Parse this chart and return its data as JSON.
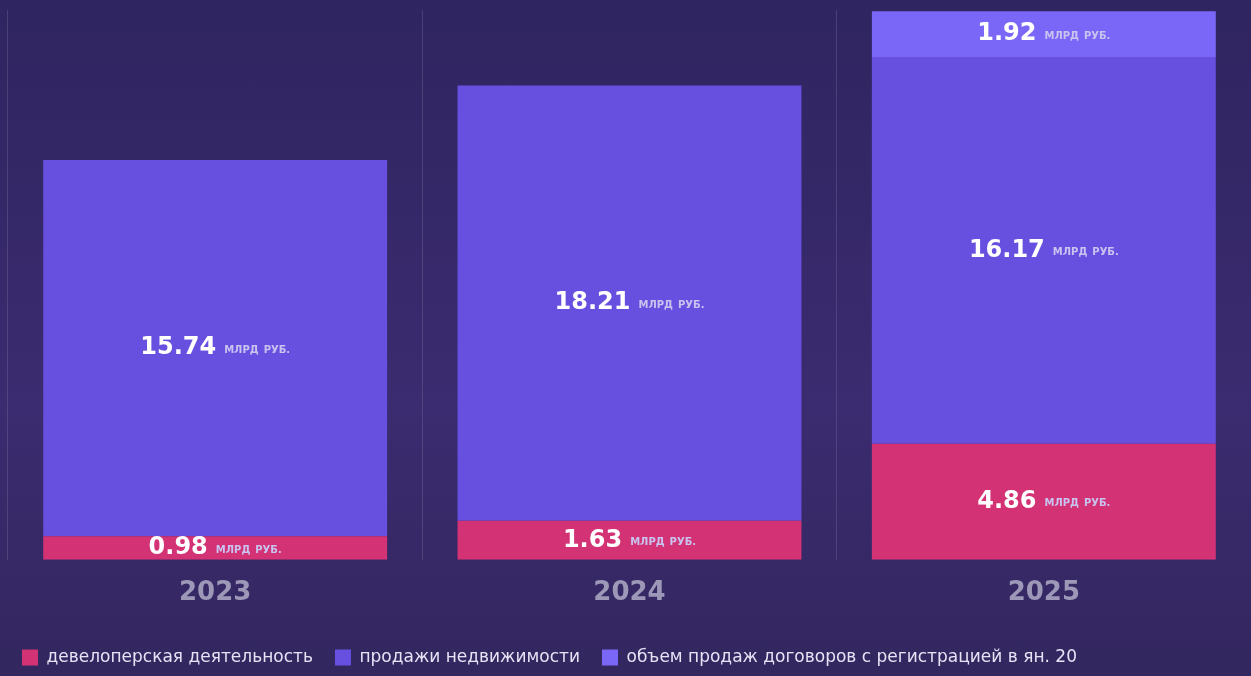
{
  "chart_data": {
    "type": "bar",
    "stacked": true,
    "categories": [
      "2023",
      "2024",
      "2025"
    ],
    "ylim": [
      0,
      23
    ],
    "grid": "x",
    "legend": "bottom",
    "series": [
      {
        "name": "девелоперская деятельность",
        "color": "#d33274",
        "values": [
          0.98,
          1.63,
          4.86
        ],
        "value_labels": [
          "0.98 МЛРД РУБ.",
          "1.63 МЛРД РУБ.",
          "4.86 МЛРД РУБ."
        ]
      },
      {
        "name": "продажи недвижимости",
        "color": "#6750e0",
        "values": [
          15.74,
          18.21,
          16.17
        ],
        "value_labels": [
          "15.74 МЛРД РУБ.",
          "18.21 МЛРД РУБ.",
          "16.17 МЛРД РУБ."
        ]
      },
      {
        "name": "объем продаж договоров с регистрацией в ян. 20",
        "color": "#7b67f7",
        "values": [
          null,
          null,
          1.92
        ],
        "value_labels": [
          null,
          null,
          "1.92 МЛРД РУБ."
        ]
      }
    ]
  }
}
